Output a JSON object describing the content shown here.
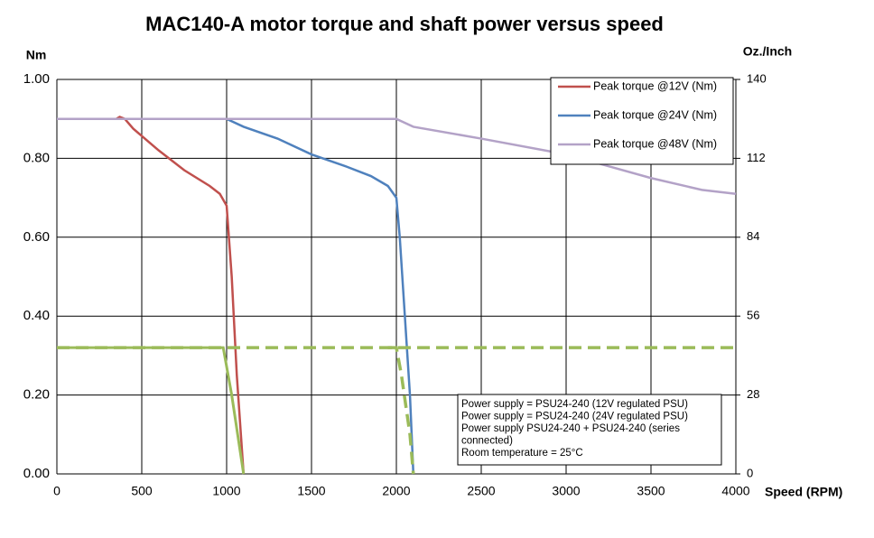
{
  "chart_data": {
    "type": "line",
    "title": "MAC140-A motor torque and shaft power versus speed",
    "ylabel": "Nm",
    "y2label": "Oz./Inch",
    "xlabel": "Speed (RPM)",
    "xlim": [
      0,
      4000
    ],
    "xticks": [
      0,
      500,
      1000,
      1500,
      2000,
      2500,
      3000,
      3500,
      4000
    ],
    "ylim": [
      0,
      1
    ],
    "yticks": [
      {
        "value": 0,
        "label": "0.00"
      },
      {
        "value": 0.2,
        "label": "0.20"
      },
      {
        "value": 0.4,
        "label": "0.40"
      },
      {
        "value": 0.6,
        "label": "0.60"
      },
      {
        "value": 0.8,
        "label": "0.80"
      },
      {
        "value": 1,
        "label": "1.00"
      }
    ],
    "y2lim": [
      0,
      140
    ],
    "y2ticks": [
      0,
      28,
      56,
      84,
      112,
      140
    ],
    "grid": true,
    "legend": "top-right",
    "series": [
      {
        "name": "Peak torque @12V (Nm)",
        "color": "#c0504d",
        "x": [
          0,
          350,
          370,
          400,
          450,
          600,
          750,
          900,
          960,
          1000,
          1030,
          1060,
          1100
        ],
        "values": [
          0.9,
          0.9,
          0.905,
          0.9,
          0.875,
          0.82,
          0.77,
          0.73,
          0.71,
          0.68,
          0.5,
          0.25,
          0
        ]
      },
      {
        "name": "Peak torque @24V (Nm)",
        "color": "#4f81bd",
        "x": [
          0,
          1000,
          1100,
          1300,
          1500,
          1700,
          1850,
          1950,
          2000,
          2020,
          2050,
          2080,
          2100
        ],
        "values": [
          0.9,
          0.9,
          0.88,
          0.85,
          0.81,
          0.78,
          0.755,
          0.73,
          0.7,
          0.6,
          0.4,
          0.2,
          0
        ]
      },
      {
        "name": "Peak torque @48V (Nm)",
        "color": "#b3a2c7",
        "x": [
          0,
          2000,
          2100,
          2500,
          3000,
          3500,
          3800,
          4000
        ],
        "values": [
          0.9,
          0.9,
          0.88,
          0.85,
          0.81,
          0.75,
          0.72,
          0.71
        ]
      },
      {
        "color": "#9bbb59",
        "x": [
          0,
          980,
          1030,
          1100
        ],
        "values": [
          0.32,
          0.32,
          0.2,
          0
        ]
      },
      {
        "color": "#9bbb59",
        "dash": true,
        "x": [
          1950,
          2000,
          2030,
          2080,
          2100
        ],
        "values": [
          0.32,
          0.32,
          0.25,
          0.1,
          0
        ]
      },
      {
        "color": "#9bbb59",
        "dash": true,
        "x": [
          0,
          4000
        ],
        "values": [
          0.32,
          0.32
        ]
      }
    ],
    "annotations": [
      "Power supply = PSU24-240 (12V regulated PSU)",
      "Power supply = PSU24-240 (24V regulated PSU)",
      "Power supply PSU24-240 + PSU24-240 (series",
      "connected)",
      "Room temperature = 25°C"
    ]
  }
}
